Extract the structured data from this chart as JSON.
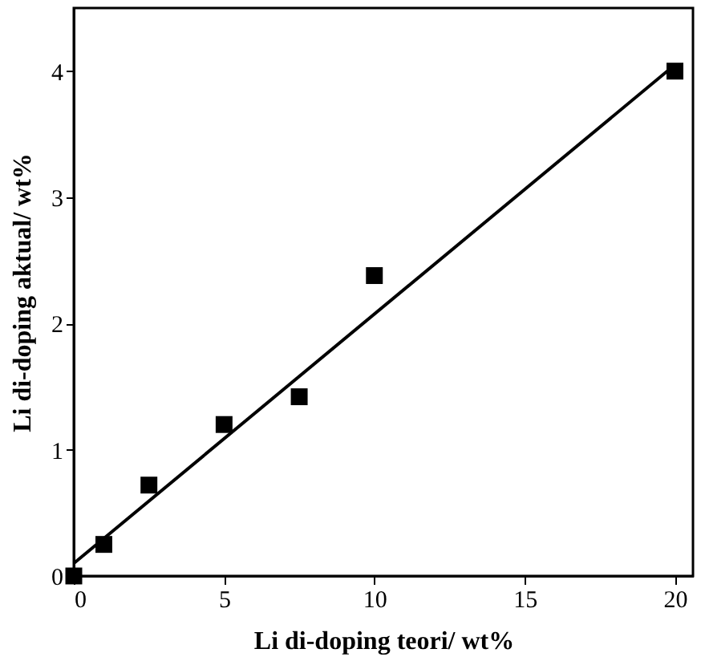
{
  "chart_data": {
    "type": "scatter",
    "xlabel": "Li di-doping teori/ wt%",
    "ylabel": "Li di-doping aktual/ wt%",
    "xlim": [
      0,
      20.6
    ],
    "ylim": [
      0,
      4.5
    ],
    "xticks": [
      0,
      5,
      10,
      15,
      20
    ],
    "yticks": [
      0,
      1,
      2,
      3,
      4
    ],
    "grid": false,
    "marker": "square",
    "series": [
      {
        "type": "scatter",
        "color": "#000000",
        "x": [
          0,
          1,
          2.5,
          5,
          7.5,
          10,
          20
        ],
        "values": [
          0,
          0.25,
          0.72,
          1.2,
          1.42,
          2.38,
          4.0
        ]
      },
      {
        "type": "line",
        "color": "#000000",
        "x": [
          0,
          20
        ],
        "values": [
          0.1,
          4.05
        ],
        "line_style": "solid",
        "marker": "none"
      }
    ]
  }
}
